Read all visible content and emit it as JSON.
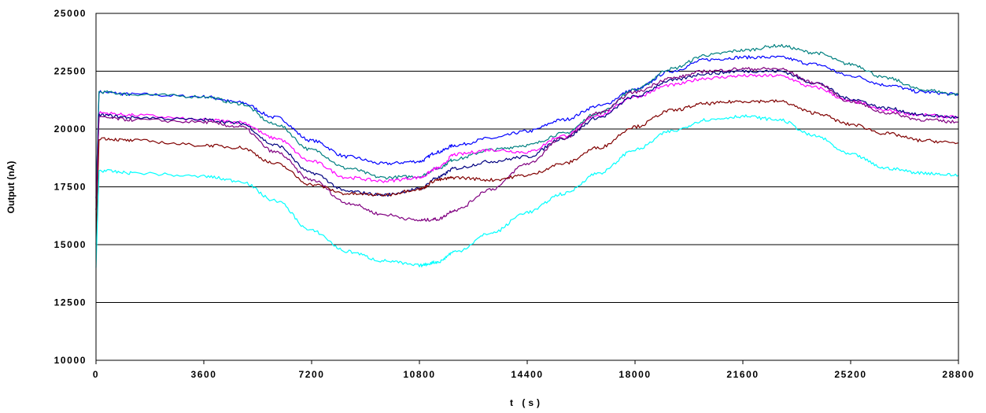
{
  "chart_data": {
    "type": "line",
    "title": "",
    "xlabel": "t (s)",
    "ylabel": "Output (nA)",
    "xlim": [
      0,
      28800
    ],
    "ylim": [
      10000,
      25000
    ],
    "xticks": [
      "0",
      "3600",
      "7200",
      "10800",
      "14400",
      "18000",
      "21600",
      "25200",
      "28800"
    ],
    "yticks": [
      "10000",
      "12500",
      "15000",
      "17500",
      "20000",
      "22500",
      "25000"
    ],
    "grid": "horizontal",
    "legend": "none",
    "series": [
      {
        "color": "#0000ff",
        "x": [
          0,
          100,
          1200,
          3600,
          4800,
          6000,
          7200,
          8400,
          9600,
          10800,
          11400,
          12000,
          13200,
          14400,
          15600,
          16800,
          18000,
          19200,
          20400,
          21600,
          22800,
          24000,
          25200,
          26400,
          27600,
          28800
        ],
        "values": [
          17000,
          21600,
          21500,
          21400,
          21150,
          20500,
          19500,
          18800,
          18500,
          18600,
          19000,
          19300,
          19600,
          19900,
          20400,
          21000,
          21700,
          22500,
          23000,
          23100,
          23100,
          22800,
          22300,
          21900,
          21600,
          21500
        ]
      },
      {
        "color": "#008080",
        "x": [
          0,
          100,
          1200,
          3600,
          4800,
          6000,
          7200,
          8400,
          9600,
          10800,
          11400,
          12000,
          13200,
          14400,
          15600,
          16800,
          18000,
          19200,
          20400,
          21600,
          22800,
          24000,
          25200,
          26400,
          27600,
          28800
        ],
        "values": [
          17000,
          21600,
          21500,
          21400,
          21100,
          20200,
          19100,
          18300,
          17900,
          17950,
          18300,
          18700,
          19100,
          19300,
          19800,
          20700,
          21700,
          22600,
          23200,
          23400,
          23600,
          23300,
          22800,
          22200,
          21700,
          21500
        ]
      },
      {
        "color": "#ff00ff",
        "x": [
          0,
          100,
          1200,
          3600,
          4800,
          6000,
          7200,
          8400,
          9600,
          10800,
          11400,
          12000,
          13200,
          14400,
          15600,
          16800,
          18000,
          19200,
          20400,
          21600,
          22800,
          24000,
          25200,
          26400,
          27600,
          28800
        ],
        "values": [
          16500,
          20700,
          20600,
          20400,
          20300,
          19600,
          18600,
          17900,
          17750,
          17900,
          18300,
          18900,
          19100,
          19000,
          19700,
          20600,
          21400,
          21900,
          22200,
          22300,
          22300,
          21800,
          21200,
          20800,
          20600,
          20500
        ]
      },
      {
        "color": "#000080",
        "x": [
          0,
          100,
          1200,
          3600,
          4800,
          6000,
          7200,
          8400,
          9600,
          10800,
          11400,
          12000,
          13200,
          14400,
          15600,
          16800,
          18000,
          19200,
          20400,
          21600,
          22800,
          24000,
          25200,
          26400,
          27600,
          28800
        ],
        "values": [
          16500,
          20600,
          20500,
          20400,
          20250,
          19300,
          18100,
          17300,
          17150,
          17400,
          17900,
          18300,
          18600,
          18800,
          19600,
          20500,
          21400,
          22100,
          22400,
          22500,
          22500,
          22000,
          21300,
          20900,
          20600,
          20500
        ]
      },
      {
        "color": "#800080",
        "x": [
          0,
          100,
          1200,
          3600,
          4800,
          6000,
          7200,
          8400,
          9600,
          10800,
          11400,
          12000,
          13200,
          14400,
          15600,
          16800,
          18000,
          19200,
          20400,
          21600,
          22800,
          24000,
          25200,
          26400,
          27600,
          28800
        ],
        "values": [
          16500,
          20500,
          20400,
          20300,
          20100,
          19000,
          17800,
          16800,
          16300,
          16050,
          16100,
          16500,
          17400,
          18500,
          19600,
          20700,
          21600,
          22200,
          22500,
          22600,
          22600,
          22000,
          21200,
          20700,
          20400,
          20300
        ]
      },
      {
        "color": "#800000",
        "x": [
          0,
          100,
          1200,
          3600,
          4800,
          6000,
          7200,
          8400,
          9600,
          10800,
          11400,
          12000,
          13200,
          14400,
          15600,
          16800,
          18000,
          19200,
          20400,
          21600,
          22800,
          24000,
          25200,
          26400,
          27600,
          28800
        ],
        "values": [
          15000,
          19600,
          19500,
          19300,
          19200,
          18500,
          17600,
          17200,
          17150,
          17400,
          17800,
          17900,
          17800,
          18000,
          18500,
          19200,
          20100,
          20800,
          21100,
          21200,
          21200,
          20700,
          20200,
          19800,
          19500,
          19400
        ]
      },
      {
        "color": "#00ffff",
        "x": [
          0,
          100,
          1200,
          3600,
          4800,
          6000,
          7200,
          8400,
          9600,
          10800,
          11400,
          12000,
          13200,
          14400,
          15600,
          16800,
          18000,
          19200,
          20400,
          21600,
          22800,
          24000,
          25200,
          26400,
          27600,
          28800
        ],
        "values": [
          14000,
          18200,
          18100,
          17950,
          17750,
          16900,
          15600,
          14700,
          14300,
          14100,
          14250,
          14700,
          15500,
          16400,
          17200,
          18100,
          19100,
          19900,
          20400,
          20550,
          20400,
          19700,
          18900,
          18300,
          18100,
          18000
        ]
      }
    ]
  }
}
